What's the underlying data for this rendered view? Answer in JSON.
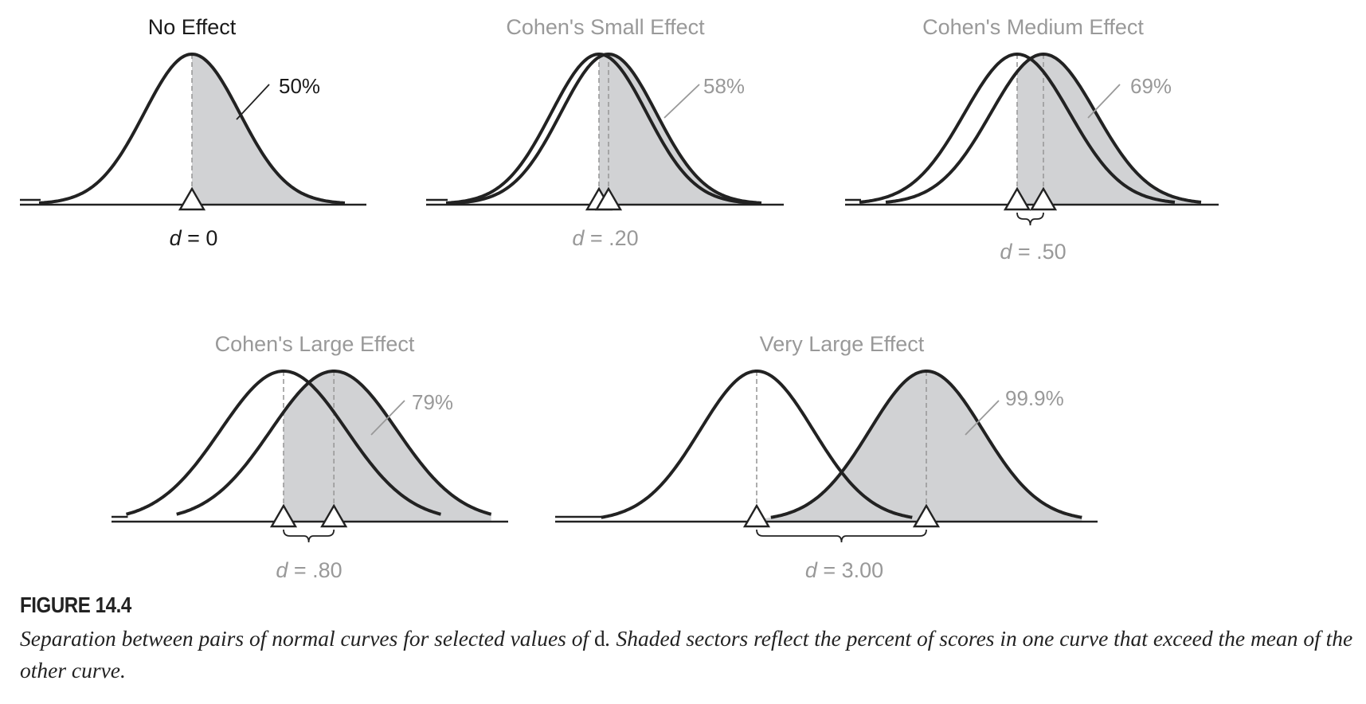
{
  "colors": {
    "title_dark": "#1a1a1a",
    "title_gray": "#999999",
    "curve": "#222222",
    "shade": "#d1d2d4",
    "dash": "#9a9a9a",
    "leader_gray": "#999999"
  },
  "panels": [
    {
      "id": "no-effect",
      "title": "No Effect",
      "percent_label": "50%",
      "d_label": "0",
      "d_value": 0,
      "percent_value": 50,
      "style": "dark"
    },
    {
      "id": "small",
      "title": "Cohen's Small Effect",
      "percent_label": "58%",
      "d_label": ".20",
      "d_value": 0.2,
      "percent_value": 58,
      "style": "gray"
    },
    {
      "id": "medium",
      "title": "Cohen's Medium Effect",
      "percent_label": "69%",
      "d_label": ".50",
      "d_value": 0.5,
      "percent_value": 69,
      "style": "gray"
    },
    {
      "id": "large",
      "title": "Cohen's Large Effect",
      "percent_label": "79%",
      "d_label": ".80",
      "d_value": 0.8,
      "percent_value": 79,
      "style": "gray"
    },
    {
      "id": "very-large",
      "title": "Very Large Effect",
      "percent_label": "99.9%",
      "d_label": "3.00",
      "d_value": 3.0,
      "percent_value": 99.9,
      "style": "gray"
    }
  ],
  "d_symbol": "d",
  "d_equals": " = ",
  "figure": {
    "number": "FIGURE 14.4",
    "caption_part1": "Separation between pairs of normal curves for selected values of ",
    "caption_symbol": "d",
    "caption_part2": ". Shaded sectors reflect the percent of scores in one curve that exceed the mean of the other curve."
  }
}
